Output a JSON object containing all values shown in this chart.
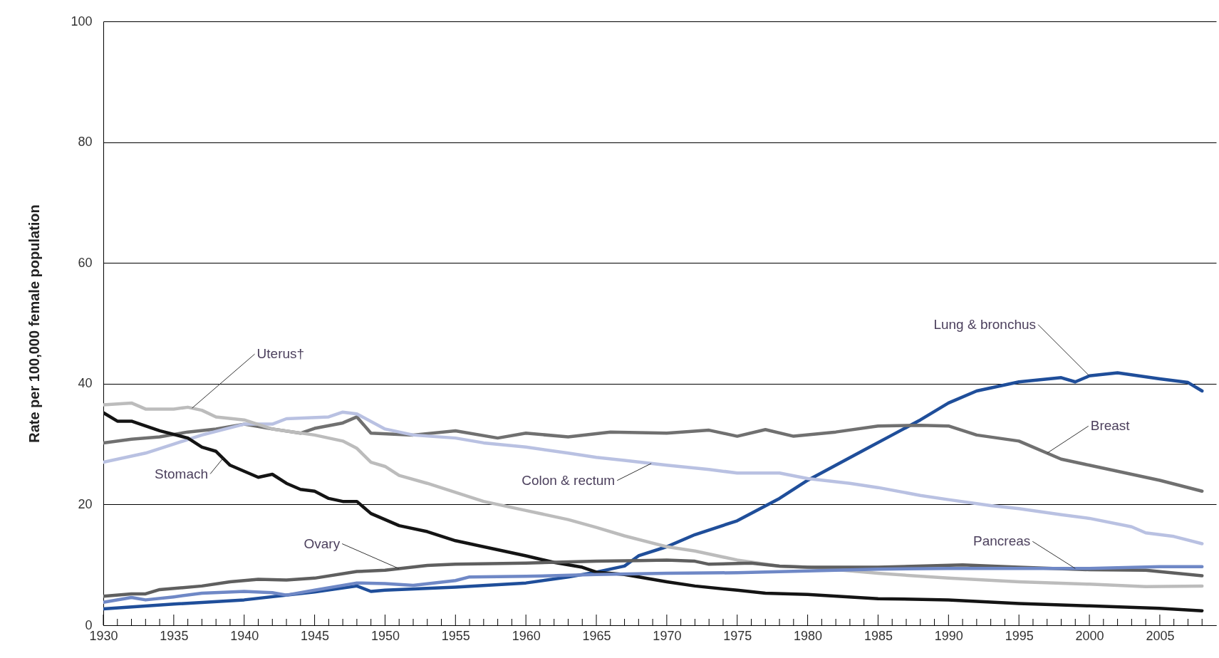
{
  "chart_data": {
    "type": "line",
    "ylabel": "Rate per 100,000 female population",
    "xlim": [
      1930,
      2009
    ],
    "ylim": [
      0,
      100
    ],
    "yticks": [
      0,
      20,
      40,
      60,
      80,
      100
    ],
    "grid": "y",
    "legend": false,
    "xticks": [
      1930,
      {
        "value": 1931,
        "label": null
      },
      {
        "value": 1932,
        "label": null
      },
      {
        "value": 1933,
        "label": null
      },
      {
        "value": 1934,
        "label": null
      },
      1935,
      {
        "value": 1936,
        "label": null
      },
      {
        "value": 1937,
        "label": null
      },
      {
        "value": 1938,
        "label": null
      },
      {
        "value": 1939,
        "label": null
      },
      1940,
      {
        "value": 1941,
        "label": null
      },
      {
        "value": 1942,
        "label": null
      },
      {
        "value": 1943,
        "label": null
      },
      {
        "value": 1944,
        "label": null
      },
      1945,
      {
        "value": 1946,
        "label": null
      },
      {
        "value": 1947,
        "label": null
      },
      {
        "value": 1948,
        "label": null
      },
      {
        "value": 1949,
        "label": null
      },
      1950,
      {
        "value": 1951,
        "label": null
      },
      {
        "value": 1952,
        "label": null
      },
      {
        "value": 1953,
        "label": null
      },
      {
        "value": 1954,
        "label": null
      },
      1955,
      {
        "value": 1956,
        "label": null
      },
      {
        "value": 1957,
        "label": null
      },
      {
        "value": 1958,
        "label": null
      },
      {
        "value": 1959,
        "label": null
      },
      1960,
      {
        "value": 1961,
        "label": null
      },
      {
        "value": 1962,
        "label": null
      },
      {
        "value": 1963,
        "label": null
      },
      {
        "value": 1964,
        "label": null
      },
      1965,
      {
        "value": 1966,
        "label": null
      },
      {
        "value": 1967,
        "label": null
      },
      {
        "value": 1968,
        "label": null
      },
      {
        "value": 1969,
        "label": null
      },
      1970,
      {
        "value": 1971,
        "label": null
      },
      {
        "value": 1972,
        "label": null
      },
      {
        "value": 1973,
        "label": null
      },
      {
        "value": 1974,
        "label": null
      },
      1975,
      {
        "value": 1976,
        "label": null
      },
      {
        "value": 1977,
        "label": null
      },
      {
        "value": 1978,
        "label": null
      },
      {
        "value": 1979,
        "label": null
      },
      1980,
      {
        "value": 1981,
        "label": null
      },
      {
        "value": 1982,
        "label": null
      },
      {
        "value": 1983,
        "label": null
      },
      {
        "value": 1984,
        "label": null
      },
      1985,
      {
        "value": 1986,
        "label": null
      },
      {
        "value": 1987,
        "label": null
      },
      {
        "value": 1988,
        "label": null
      },
      {
        "value": 1989,
        "label": null
      },
      1990,
      {
        "value": 1991,
        "label": null
      },
      {
        "value": 1992,
        "label": null
      },
      {
        "value": 1993,
        "label": null
      },
      {
        "value": 1994,
        "label": null
      },
      1995,
      {
        "value": 1996,
        "label": null
      },
      {
        "value": 1997,
        "label": null
      },
      {
        "value": 1998,
        "label": null
      },
      {
        "value": 1999,
        "label": null
      },
      2000,
      {
        "value": 2001,
        "label": null
      },
      {
        "value": 2002,
        "label": null
      },
      {
        "value": 2003,
        "label": null
      },
      {
        "value": 2004,
        "label": null
      },
      2005,
      {
        "value": 2006,
        "label": null
      },
      {
        "value": 2007,
        "label": null
      },
      {
        "value": 2008,
        "label": null
      }
    ],
    "series": [
      {
        "name": "Lung & bronchus",
        "color": "#1f4e9a",
        "x": [
          1930,
          1935,
          1940,
          1945,
          1948,
          1949,
          1950,
          1955,
          1960,
          1963,
          1965,
          1967,
          1968,
          1970,
          1972,
          1975,
          1978,
          1980,
          1982,
          1984,
          1986,
          1988,
          1990,
          1992,
          1995,
          1998,
          1999,
          2000,
          2002,
          2005,
          2007,
          2008
        ],
        "values": [
          2.7,
          3.5,
          4.2,
          5.5,
          6.5,
          5.6,
          5.8,
          6.3,
          7.0,
          8.0,
          8.8,
          9.8,
          11.5,
          13.0,
          15.0,
          17.3,
          21.0,
          24.0,
          26.5,
          29.0,
          31.5,
          34.0,
          36.8,
          38.8,
          40.3,
          41.0,
          40.3,
          41.3,
          41.8,
          40.8,
          40.2,
          38.8
        ]
      },
      {
        "name": "Breast",
        "color": "#707070",
        "x": [
          1930,
          1932,
          1934,
          1936,
          1938,
          1940,
          1942,
          1944,
          1945,
          1947,
          1948,
          1949,
          1952,
          1955,
          1958,
          1960,
          1963,
          1966,
          1970,
          1973,
          1975,
          1977,
          1979,
          1982,
          1985,
          1988,
          1990,
          1992,
          1995,
          1998,
          2000,
          2003,
          2005,
          2008
        ],
        "values": [
          30.2,
          30.8,
          31.2,
          32.0,
          32.5,
          33.3,
          32.5,
          31.8,
          32.6,
          33.5,
          34.5,
          31.8,
          31.5,
          32.2,
          31.0,
          31.8,
          31.2,
          32.0,
          31.8,
          32.3,
          31.3,
          32.4,
          31.3,
          32.0,
          33.0,
          33.1,
          33.0,
          31.5,
          30.5,
          27.5,
          26.5,
          25.0,
          24.0,
          22.2
        ]
      },
      {
        "name": "Colon & rectum",
        "color": "#b9c1e2",
        "x": [
          1930,
          1933,
          1935,
          1937,
          1940,
          1942,
          1943,
          1946,
          1947,
          1948,
          1950,
          1952,
          1955,
          1957,
          1960,
          1963,
          1965,
          1967,
          1970,
          1973,
          1975,
          1978,
          1980,
          1983,
          1985,
          1988,
          1990,
          1993,
          1995,
          1998,
          2000,
          2003,
          2004,
          2006,
          2008
        ],
        "values": [
          27.0,
          28.5,
          30.0,
          31.5,
          33.3,
          33.3,
          34.2,
          34.5,
          35.3,
          35.0,
          32.5,
          31.5,
          31.0,
          30.2,
          29.5,
          28.5,
          27.8,
          27.3,
          26.5,
          25.8,
          25.2,
          25.2,
          24.3,
          23.5,
          22.8,
          21.5,
          20.8,
          19.8,
          19.3,
          18.3,
          17.7,
          16.3,
          15.3,
          14.7,
          13.5
        ]
      },
      {
        "name": "Uterus†",
        "color": "#bcbcbc",
        "x": [
          1930,
          1932,
          1933,
          1935,
          1936,
          1937,
          1938,
          1940,
          1942,
          1945,
          1947,
          1948,
          1949,
          1950,
          1951,
          1953,
          1955,
          1957,
          1960,
          1963,
          1965,
          1967,
          1970,
          1972,
          1975,
          1978,
          1980,
          1985,
          1990,
          1995,
          2000,
          2004,
          2008
        ],
        "values": [
          36.5,
          36.8,
          35.8,
          35.8,
          36.1,
          35.6,
          34.5,
          34.0,
          32.5,
          31.5,
          30.5,
          29.3,
          27.0,
          26.3,
          24.8,
          23.5,
          22.0,
          20.5,
          19.0,
          17.5,
          16.2,
          14.8,
          13.0,
          12.3,
          10.8,
          9.8,
          9.6,
          8.6,
          7.8,
          7.2,
          6.8,
          6.4,
          6.5
        ]
      },
      {
        "name": "Stomach",
        "color": "#141414",
        "x": [
          1930,
          1931,
          1932,
          1934,
          1936,
          1937,
          1938,
          1939,
          1941,
          1942,
          1943,
          1944,
          1945,
          1946,
          1947,
          1948,
          1949,
          1951,
          1953,
          1955,
          1956,
          1958,
          1960,
          1962,
          1964,
          1965,
          1967,
          1970,
          1972,
          1975,
          1977,
          1980,
          1985,
          1990,
          1995,
          2000,
          2005,
          2008
        ],
        "values": [
          35.2,
          33.8,
          33.8,
          32.2,
          31.0,
          29.5,
          28.8,
          26.5,
          24.5,
          25.0,
          23.5,
          22.5,
          22.2,
          21.0,
          20.5,
          20.5,
          18.5,
          16.5,
          15.5,
          14.0,
          13.5,
          12.5,
          11.5,
          10.4,
          9.6,
          8.8,
          8.4,
          7.2,
          6.5,
          5.8,
          5.3,
          5.1,
          4.4,
          4.2,
          3.6,
          3.2,
          2.8,
          2.4
        ]
      },
      {
        "name": "Ovary",
        "color": "#5f5f5f",
        "x": [
          1930,
          1932,
          1933,
          1934,
          1937,
          1939,
          1941,
          1943,
          1945,
          1948,
          1950,
          1953,
          1955,
          1960,
          1965,
          1968,
          1970,
          1972,
          1973,
          1976,
          1978,
          1980,
          1985,
          1991,
          1995,
          2000,
          2004,
          2008
        ],
        "values": [
          4.8,
          5.2,
          5.2,
          5.9,
          6.5,
          7.2,
          7.6,
          7.5,
          7.8,
          8.9,
          9.1,
          9.9,
          10.1,
          10.3,
          10.6,
          10.7,
          10.8,
          10.6,
          10.1,
          10.3,
          9.8,
          9.6,
          9.6,
          10.0,
          9.6,
          9.2,
          9.1,
          8.2
        ]
      },
      {
        "name": "Pancreas",
        "color": "#6f88c6",
        "x": [
          1930,
          1932,
          1933,
          1935,
          1937,
          1940,
          1942,
          1943,
          1945,
          1948,
          1950,
          1952,
          1955,
          1956,
          1960,
          1965,
          1970,
          1975,
          1980,
          1985,
          1990,
          1995,
          2000,
          2005,
          2008
        ],
        "values": [
          3.8,
          4.6,
          4.2,
          4.7,
          5.3,
          5.6,
          5.4,
          5.0,
          5.8,
          7.0,
          6.9,
          6.6,
          7.4,
          8.0,
          8.1,
          8.4,
          8.6,
          8.7,
          9.0,
          9.3,
          9.4,
          9.4,
          9.4,
          9.7,
          9.7
        ]
      }
    ]
  }
}
